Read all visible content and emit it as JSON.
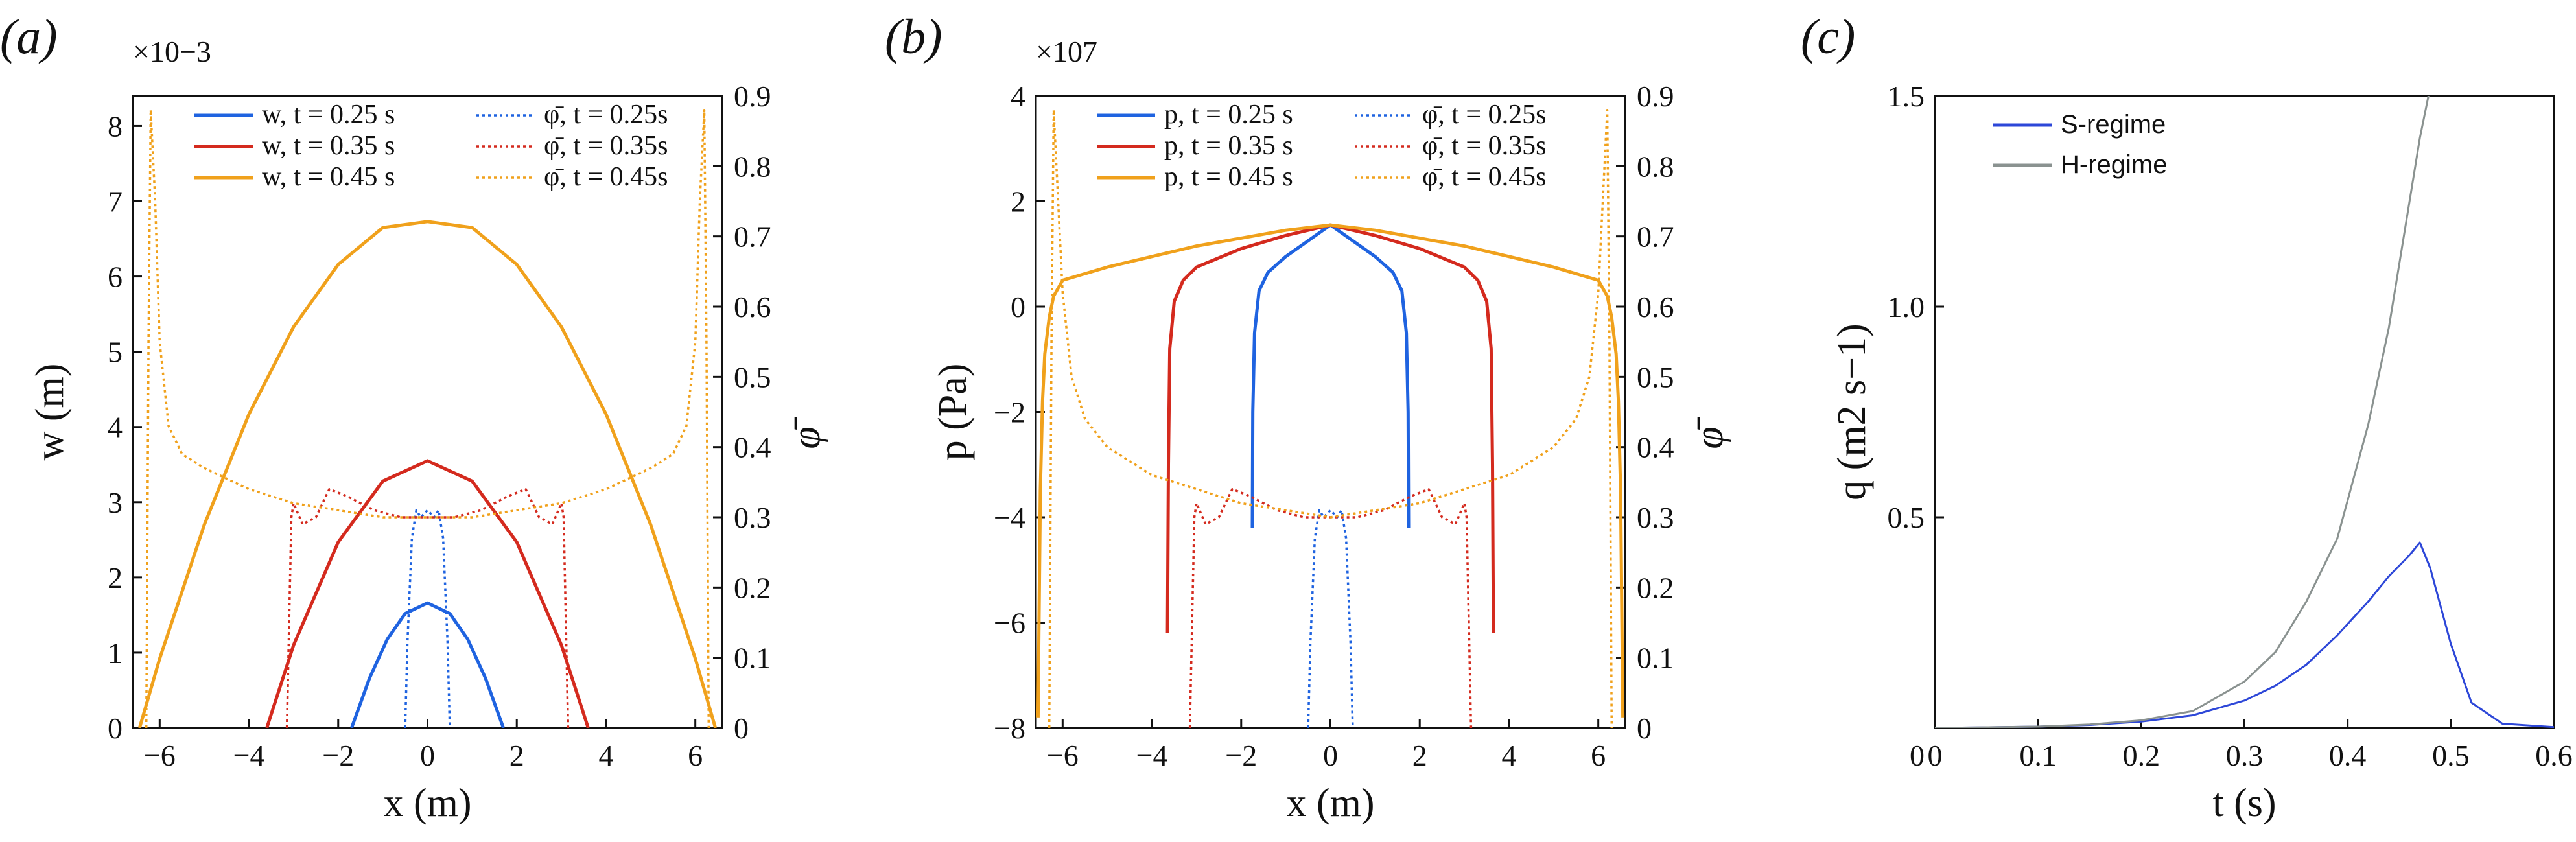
{
  "figure": {
    "panel_labels": [
      "(a)",
      "(b)",
      "(c)"
    ]
  },
  "colors": {
    "t025": "#1f63e0",
    "t035": "#d42a1e",
    "t045": "#f0a11c",
    "s_regime": "#2d47d8",
    "h_regime": "#8a9290",
    "axis": "#111111"
  },
  "chart_data": [
    {
      "panel": "(a)",
      "type": "line",
      "xlabel": "x (m)",
      "ylabel": "w (m)",
      "y2label": "φ̄",
      "y_multiplier": "×10−3",
      "xlim": [
        -6.6,
        6.6
      ],
      "ylim": [
        0,
        8.4
      ],
      "y2lim": [
        0,
        0.9
      ],
      "xticks": [
        -6,
        -4,
        -2,
        0,
        2,
        4,
        6
      ],
      "yticks": [
        0,
        1,
        2,
        3,
        4,
        5,
        6,
        7,
        8
      ],
      "y2ticks": [
        0,
        0.1,
        0.2,
        0.3,
        0.4,
        0.5,
        0.6,
        0.7,
        0.8,
        0.9
      ],
      "legend_position": "top-center",
      "series": [
        {
          "name": "w, t = 0.25 s",
          "style": "solid",
          "color_key": "t025",
          "axis": "left",
          "x": [
            -1.7,
            -1.3,
            -0.9,
            -0.5,
            0,
            0.5,
            0.9,
            1.3,
            1.7
          ],
          "y": [
            0,
            0.66,
            1.18,
            1.52,
            1.66,
            1.52,
            1.18,
            0.66,
            0
          ]
        },
        {
          "name": "w, t = 0.35 s",
          "style": "solid",
          "color_key": "t035",
          "axis": "left",
          "x": [
            -3.6,
            -3,
            -2,
            -1,
            0,
            1,
            2,
            3,
            3.6
          ],
          "y": [
            0,
            1.1,
            2.47,
            3.28,
            3.55,
            3.28,
            2.47,
            1.1,
            0
          ]
        },
        {
          "name": "w, t = 0.45 s",
          "style": "solid",
          "color_key": "t045",
          "axis": "left",
          "x": [
            -6.45,
            -6,
            -5,
            -4,
            -3,
            -2,
            -1,
            0,
            1,
            2,
            3,
            4,
            5,
            6,
            6.45
          ],
          "y": [
            0,
            0.92,
            2.7,
            4.17,
            5.33,
            6.16,
            6.65,
            6.73,
            6.65,
            6.16,
            5.33,
            4.17,
            2.7,
            0.92,
            0
          ]
        },
        {
          "name": "φ̄, t = 0.25s",
          "style": "dotted",
          "color_key": "t025",
          "axis": "right",
          "x": [
            -0.5,
            -0.45,
            -0.35,
            -0.25,
            -0.15,
            0,
            0.15,
            0.25,
            0.35,
            0.45,
            0.5
          ],
          "y": [
            0,
            0.12,
            0.27,
            0.31,
            0.3,
            0.31,
            0.3,
            0.31,
            0.27,
            0.12,
            0
          ]
        },
        {
          "name": "φ̄, t = 0.35s",
          "style": "dotted",
          "color_key": "t035",
          "axis": "right",
          "x": [
            -3.15,
            -3.05,
            -3.0,
            -2.8,
            -2.5,
            -2.2,
            -1.8,
            -1.2,
            -0.6,
            0,
            0.6,
            1.2,
            1.8,
            2.2,
            2.5,
            2.8,
            3.0,
            3.05,
            3.15
          ],
          "y": [
            0,
            0.3,
            0.32,
            0.29,
            0.3,
            0.34,
            0.33,
            0.31,
            0.3,
            0.3,
            0.3,
            0.31,
            0.33,
            0.34,
            0.3,
            0.29,
            0.32,
            0.3,
            0
          ]
        },
        {
          "name": "φ̄, t = 0.45s",
          "style": "dotted",
          "color_key": "t045",
          "axis": "right",
          "x": [
            -6.3,
            -6.25,
            -6.2,
            -6.1,
            -6.0,
            -5.8,
            -5.5,
            -5,
            -4,
            -3,
            -2,
            -1,
            0,
            1,
            2,
            3,
            4,
            5,
            5.5,
            5.8,
            6.0,
            6.1,
            6.2,
            6.25,
            6.3
          ],
          "y": [
            0,
            0.55,
            0.88,
            0.75,
            0.55,
            0.43,
            0.39,
            0.37,
            0.34,
            0.32,
            0.31,
            0.3,
            0.3,
            0.3,
            0.31,
            0.32,
            0.34,
            0.37,
            0.39,
            0.43,
            0.55,
            0.75,
            0.88,
            0.55,
            0
          ]
        }
      ]
    },
    {
      "panel": "(b)",
      "type": "line",
      "xlabel": "x (m)",
      "ylabel": "p (Pa)",
      "y2label": "φ̄",
      "y_multiplier": "×107",
      "xlim": [
        -6.6,
        6.6
      ],
      "ylim": [
        -8,
        4
      ],
      "y2lim": [
        0,
        0.9
      ],
      "xticks": [
        -6,
        -4,
        -2,
        0,
        2,
        4,
        6
      ],
      "yticks": [
        -8,
        -6,
        -4,
        -2,
        0,
        2,
        4
      ],
      "y2ticks": [
        0,
        0.1,
        0.2,
        0.3,
        0.4,
        0.5,
        0.6,
        0.7,
        0.8,
        0.9
      ],
      "legend_position": "top-center",
      "series": [
        {
          "name": "p, t = 0.25 s",
          "style": "solid",
          "color_key": "t025",
          "axis": "left",
          "x": [
            -1.75,
            -1.74,
            -1.7,
            -1.6,
            -1.4,
            -1.0,
            -0.5,
            0,
            0.5,
            1.0,
            1.4,
            1.6,
            1.7,
            1.74,
            1.75
          ],
          "y": [
            -4.2,
            -2.0,
            -0.5,
            0.3,
            0.65,
            0.95,
            1.25,
            1.55,
            1.25,
            0.95,
            0.65,
            0.3,
            -0.5,
            -2.0,
            -4.2
          ]
        },
        {
          "name": "p, t = 0.35 s",
          "style": "solid",
          "color_key": "t035",
          "axis": "left",
          "x": [
            -3.65,
            -3.63,
            -3.6,
            -3.5,
            -3.3,
            -3.0,
            -2.0,
            -1.0,
            0,
            1.0,
            2.0,
            3.0,
            3.3,
            3.5,
            3.6,
            3.63,
            3.65
          ],
          "y": [
            -6.2,
            -3.0,
            -0.8,
            0.1,
            0.5,
            0.75,
            1.1,
            1.35,
            1.55,
            1.35,
            1.1,
            0.75,
            0.5,
            0.1,
            -0.8,
            -3.0,
            -6.2
          ]
        },
        {
          "name": "p, t = 0.45 s",
          "style": "solid",
          "color_key": "t045",
          "axis": "left",
          "x": [
            -6.55,
            -6.5,
            -6.45,
            -6.4,
            -6.3,
            -6.2,
            -6.0,
            -5.0,
            -4.0,
            -3.0,
            -2.0,
            -1.0,
            0,
            1.0,
            2.0,
            3.0,
            4.0,
            5.0,
            6.0,
            6.2,
            6.3,
            6.4,
            6.45,
            6.5,
            6.55
          ],
          "y": [
            -7.8,
            -3.5,
            -1.8,
            -0.9,
            -0.2,
            0.2,
            0.5,
            0.75,
            0.95,
            1.15,
            1.3,
            1.45,
            1.55,
            1.45,
            1.3,
            1.15,
            0.95,
            0.75,
            0.5,
            0.2,
            -0.2,
            -0.9,
            -1.8,
            -3.5,
            -7.8
          ]
        },
        {
          "name": "φ̄, t = 0.25s",
          "style": "dotted",
          "color_key": "t025",
          "axis": "right",
          "x": [
            -0.5,
            -0.45,
            -0.35,
            -0.25,
            -0.15,
            0,
            0.15,
            0.25,
            0.35,
            0.45,
            0.5
          ],
          "y": [
            0,
            0.12,
            0.27,
            0.31,
            0.3,
            0.31,
            0.3,
            0.31,
            0.27,
            0.12,
            0
          ]
        },
        {
          "name": "φ̄, t = 0.35s",
          "style": "dotted",
          "color_key": "t035",
          "axis": "right",
          "x": [
            -3.15,
            -3.05,
            -3.0,
            -2.8,
            -2.5,
            -2.2,
            -1.8,
            -1.2,
            -0.6,
            0,
            0.6,
            1.2,
            1.8,
            2.2,
            2.5,
            2.8,
            3.0,
            3.05,
            3.15
          ],
          "y": [
            0,
            0.3,
            0.32,
            0.29,
            0.3,
            0.34,
            0.33,
            0.31,
            0.3,
            0.3,
            0.3,
            0.31,
            0.33,
            0.34,
            0.3,
            0.29,
            0.32,
            0.3,
            0
          ]
        },
        {
          "name": "φ̄, t = 0.45s",
          "style": "dotted",
          "color_key": "t045",
          "axis": "right",
          "x": [
            -6.3,
            -6.25,
            -6.2,
            -6.1,
            -6.0,
            -5.8,
            -5.5,
            -5,
            -4,
            -3,
            -2,
            -1,
            0,
            1,
            2,
            3,
            4,
            5,
            5.5,
            5.8,
            6.0,
            6.1,
            6.2,
            6.25,
            6.3
          ],
          "y": [
            0,
            0.55,
            0.88,
            0.75,
            0.62,
            0.5,
            0.44,
            0.4,
            0.36,
            0.34,
            0.32,
            0.31,
            0.3,
            0.31,
            0.32,
            0.34,
            0.36,
            0.4,
            0.44,
            0.5,
            0.62,
            0.75,
            0.88,
            0.55,
            0
          ]
        }
      ]
    },
    {
      "panel": "(c)",
      "type": "line",
      "xlabel": "t (s)",
      "ylabel": "q (m2 s−1)",
      "xlim": [
        0,
        0.6
      ],
      "ylim": [
        0,
        1.5
      ],
      "xticks": [
        0,
        0.1,
        0.2,
        0.3,
        0.4,
        0.5,
        0.6
      ],
      "xtick_labels": [
        "0",
        "0.1",
        "0.2",
        "0.3",
        "0.4",
        "0.5",
        "0.6"
      ],
      "yticks": [
        0.5,
        1.0,
        1.5
      ],
      "ytick_labels": [
        "0.5",
        "1.0",
        "1.5"
      ],
      "legend_position": "top-left",
      "series": [
        {
          "name": "S-regime",
          "color_key": "s_regime",
          "x": [
            0,
            0.1,
            0.15,
            0.2,
            0.25,
            0.3,
            0.33,
            0.36,
            0.39,
            0.42,
            0.44,
            0.46,
            0.47,
            0.48,
            0.5,
            0.52,
            0.55,
            0.6
          ],
          "y": [
            0,
            0.003,
            0.007,
            0.015,
            0.03,
            0.065,
            0.1,
            0.15,
            0.22,
            0.3,
            0.36,
            0.41,
            0.44,
            0.38,
            0.2,
            0.06,
            0.01,
            0.002
          ]
        },
        {
          "name": "H-regime",
          "color_key": "h_regime",
          "x": [
            0,
            0.1,
            0.15,
            0.2,
            0.25,
            0.3,
            0.33,
            0.36,
            0.39,
            0.42,
            0.44,
            0.46,
            0.47,
            0.48
          ],
          "y": [
            0,
            0.003,
            0.008,
            0.018,
            0.04,
            0.11,
            0.18,
            0.3,
            0.45,
            0.72,
            0.95,
            1.25,
            1.4,
            1.52
          ]
        }
      ]
    }
  ]
}
